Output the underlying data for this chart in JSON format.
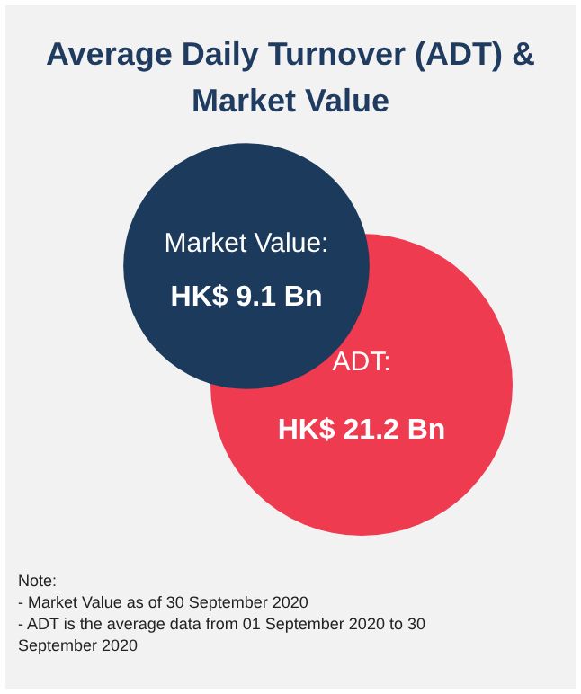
{
  "chart_data": {
    "type": "other",
    "title": "Average Daily Turnover (ADT) & Market Value",
    "categories": [
      null,
      null
    ],
    "values": [
      9.1,
      21.2
    ],
    "value_labels": [
      "HK$ 9.1 Bn",
      "HK$ 21.2 Bn"
    ],
    "colors": [
      "#1b3a5c",
      "#ef3b4f"
    ],
    "annotations": [
      "Market Value:",
      "ADT:",
      "Note:",
      "- Market Value as of 30 September 2020",
      "- ADT is the average data from 01 September 2020 to 30 September 2020"
    ]
  }
}
